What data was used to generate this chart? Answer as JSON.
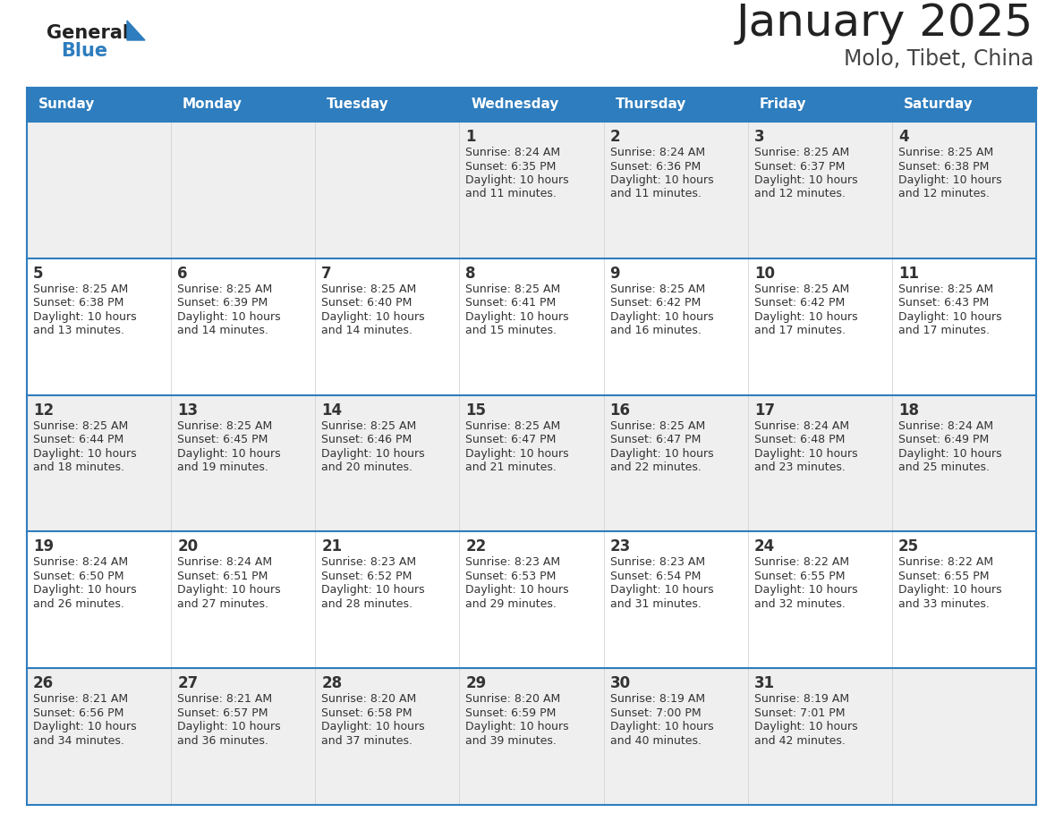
{
  "title": "January 2025",
  "subtitle": "Molo, Tibet, China",
  "days_of_week": [
    "Sunday",
    "Monday",
    "Tuesday",
    "Wednesday",
    "Thursday",
    "Friday",
    "Saturday"
  ],
  "header_bg_color": "#2E7DBE",
  "header_text_color": "#FFFFFF",
  "cell_bg_even": "#EFEFEF",
  "cell_bg_odd": "#FFFFFF",
  "cell_border_color": "#2E7DBE",
  "title_color": "#222222",
  "subtitle_color": "#444444",
  "day_number_color": "#333333",
  "cell_text_color": "#333333",
  "calendar_data": [
    [
      null,
      null,
      null,
      {
        "day": 1,
        "sunrise": "8:24 AM",
        "sunset": "6:35 PM",
        "daylight": "10 hours and 11 minutes"
      },
      {
        "day": 2,
        "sunrise": "8:24 AM",
        "sunset": "6:36 PM",
        "daylight": "10 hours and 11 minutes"
      },
      {
        "day": 3,
        "sunrise": "8:25 AM",
        "sunset": "6:37 PM",
        "daylight": "10 hours and 12 minutes"
      },
      {
        "day": 4,
        "sunrise": "8:25 AM",
        "sunset": "6:38 PM",
        "daylight": "10 hours and 12 minutes"
      }
    ],
    [
      {
        "day": 5,
        "sunrise": "8:25 AM",
        "sunset": "6:38 PM",
        "daylight": "10 hours and 13 minutes"
      },
      {
        "day": 6,
        "sunrise": "8:25 AM",
        "sunset": "6:39 PM",
        "daylight": "10 hours and 14 minutes"
      },
      {
        "day": 7,
        "sunrise": "8:25 AM",
        "sunset": "6:40 PM",
        "daylight": "10 hours and 14 minutes"
      },
      {
        "day": 8,
        "sunrise": "8:25 AM",
        "sunset": "6:41 PM",
        "daylight": "10 hours and 15 minutes"
      },
      {
        "day": 9,
        "sunrise": "8:25 AM",
        "sunset": "6:42 PM",
        "daylight": "10 hours and 16 minutes"
      },
      {
        "day": 10,
        "sunrise": "8:25 AM",
        "sunset": "6:42 PM",
        "daylight": "10 hours and 17 minutes"
      },
      {
        "day": 11,
        "sunrise": "8:25 AM",
        "sunset": "6:43 PM",
        "daylight": "10 hours and 17 minutes"
      }
    ],
    [
      {
        "day": 12,
        "sunrise": "8:25 AM",
        "sunset": "6:44 PM",
        "daylight": "10 hours and 18 minutes"
      },
      {
        "day": 13,
        "sunrise": "8:25 AM",
        "sunset": "6:45 PM",
        "daylight": "10 hours and 19 minutes"
      },
      {
        "day": 14,
        "sunrise": "8:25 AM",
        "sunset": "6:46 PM",
        "daylight": "10 hours and 20 minutes"
      },
      {
        "day": 15,
        "sunrise": "8:25 AM",
        "sunset": "6:47 PM",
        "daylight": "10 hours and 21 minutes"
      },
      {
        "day": 16,
        "sunrise": "8:25 AM",
        "sunset": "6:47 PM",
        "daylight": "10 hours and 22 minutes"
      },
      {
        "day": 17,
        "sunrise": "8:24 AM",
        "sunset": "6:48 PM",
        "daylight": "10 hours and 23 minutes"
      },
      {
        "day": 18,
        "sunrise": "8:24 AM",
        "sunset": "6:49 PM",
        "daylight": "10 hours and 25 minutes"
      }
    ],
    [
      {
        "day": 19,
        "sunrise": "8:24 AM",
        "sunset": "6:50 PM",
        "daylight": "10 hours and 26 minutes"
      },
      {
        "day": 20,
        "sunrise": "8:24 AM",
        "sunset": "6:51 PM",
        "daylight": "10 hours and 27 minutes"
      },
      {
        "day": 21,
        "sunrise": "8:23 AM",
        "sunset": "6:52 PM",
        "daylight": "10 hours and 28 minutes"
      },
      {
        "day": 22,
        "sunrise": "8:23 AM",
        "sunset": "6:53 PM",
        "daylight": "10 hours and 29 minutes"
      },
      {
        "day": 23,
        "sunrise": "8:23 AM",
        "sunset": "6:54 PM",
        "daylight": "10 hours and 31 minutes"
      },
      {
        "day": 24,
        "sunrise": "8:22 AM",
        "sunset": "6:55 PM",
        "daylight": "10 hours and 32 minutes"
      },
      {
        "day": 25,
        "sunrise": "8:22 AM",
        "sunset": "6:55 PM",
        "daylight": "10 hours and 33 minutes"
      }
    ],
    [
      {
        "day": 26,
        "sunrise": "8:21 AM",
        "sunset": "6:56 PM",
        "daylight": "10 hours and 34 minutes"
      },
      {
        "day": 27,
        "sunrise": "8:21 AM",
        "sunset": "6:57 PM",
        "daylight": "10 hours and 36 minutes"
      },
      {
        "day": 28,
        "sunrise": "8:20 AM",
        "sunset": "6:58 PM",
        "daylight": "10 hours and 37 minutes"
      },
      {
        "day": 29,
        "sunrise": "8:20 AM",
        "sunset": "6:59 PM",
        "daylight": "10 hours and 39 minutes"
      },
      {
        "day": 30,
        "sunrise": "8:19 AM",
        "sunset": "7:00 PM",
        "daylight": "10 hours and 40 minutes"
      },
      {
        "day": 31,
        "sunrise": "8:19 AM",
        "sunset": "7:01 PM",
        "daylight": "10 hours and 42 minutes"
      },
      null
    ]
  ],
  "logo_general_color": "#222222",
  "logo_blue_color": "#2E7DBE",
  "figsize": [
    11.88,
    9.18
  ],
  "dpi": 100
}
